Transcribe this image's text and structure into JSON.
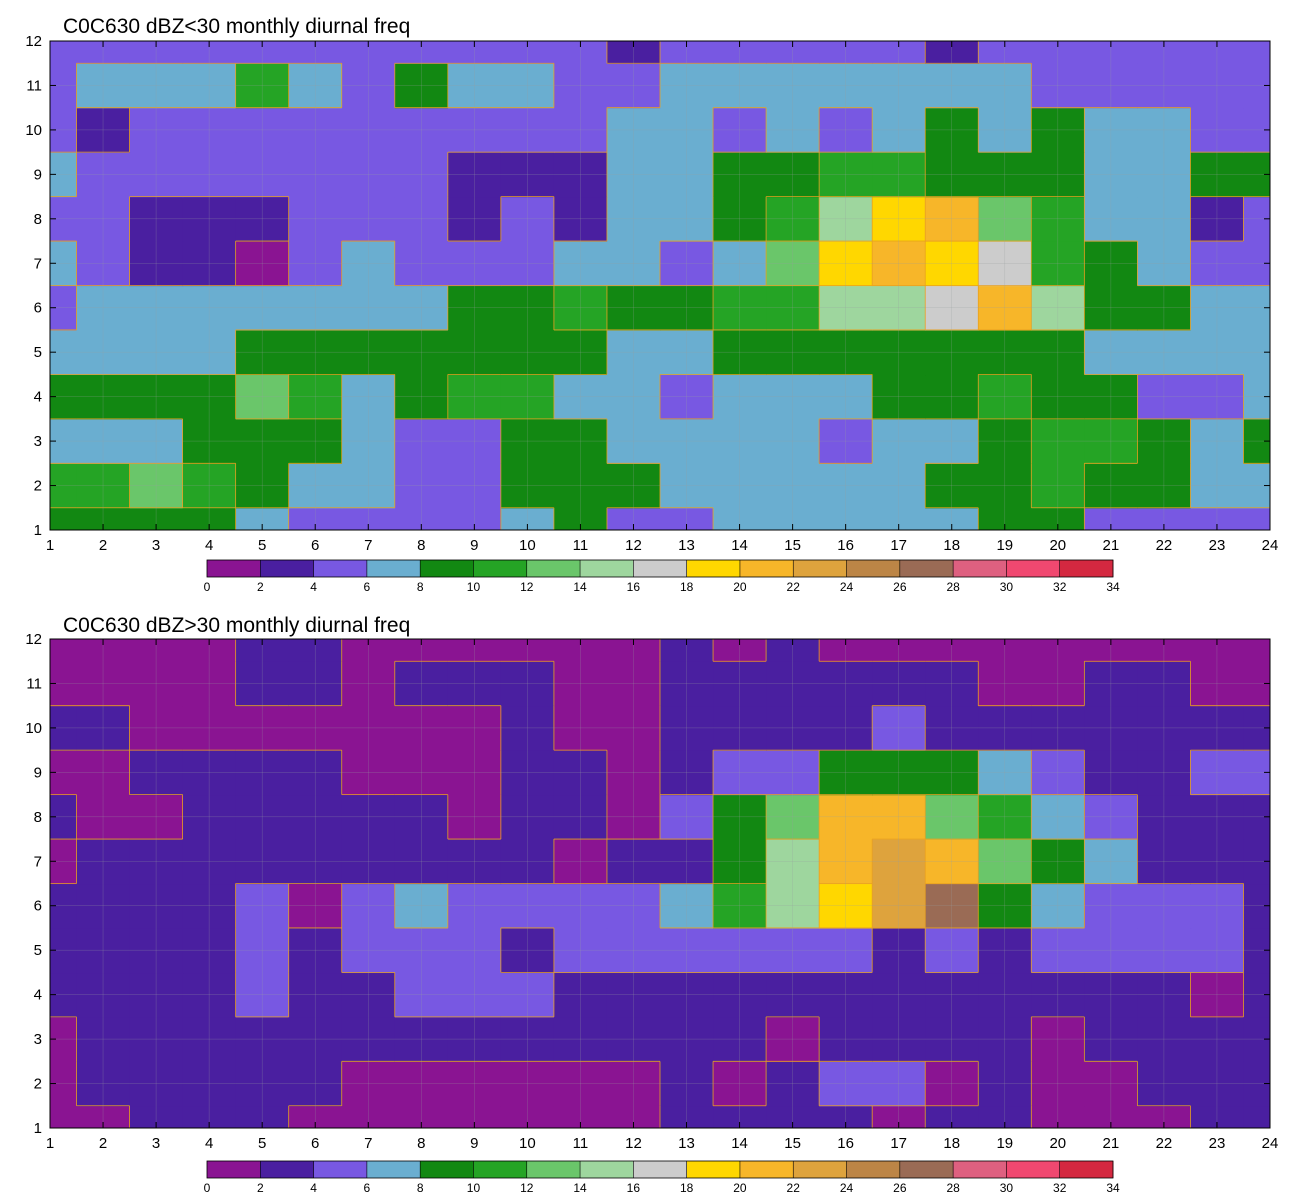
{
  "chart_data": [
    {
      "type": "heatmap",
      "title": "C0C630 dBZ<30 monthly diurnal freq",
      "x_ticks": [
        1,
        2,
        3,
        4,
        5,
        6,
        7,
        8,
        9,
        10,
        11,
        12,
        13,
        14,
        15,
        16,
        17,
        18,
        19,
        20,
        21,
        22,
        23,
        24
      ],
      "y_ticks": [
        1,
        2,
        3,
        4,
        5,
        6,
        7,
        8,
        9,
        10,
        11,
        12
      ],
      "xlim": [
        1,
        24
      ],
      "ylim": [
        1,
        12
      ],
      "levels": [
        0,
        2,
        4,
        6,
        8,
        10,
        12,
        14,
        16,
        18,
        20,
        22,
        24,
        26,
        28,
        30,
        32,
        34
      ],
      "grid": true,
      "z": [
        [
          9,
          9,
          9,
          8,
          6,
          5,
          4,
          4,
          4,
          6,
          8,
          4,
          4,
          6,
          6,
          6,
          7,
          6,
          8,
          8,
          4,
          4,
          4,
          4
        ],
        [
          11,
          11,
          13,
          11,
          9,
          7,
          7,
          5,
          5,
          8,
          9,
          9,
          6,
          7,
          7,
          7,
          7,
          8,
          9,
          10,
          9,
          8,
          6,
          7
        ],
        [
          7,
          7,
          7,
          9,
          9,
          9,
          7,
          5,
          5,
          9,
          8,
          7,
          7,
          7,
          7,
          5,
          7,
          7,
          9,
          10,
          11,
          9,
          7,
          9
        ],
        [
          9,
          9,
          9,
          9,
          13,
          11,
          7,
          9,
          11,
          11,
          7,
          7,
          5,
          7,
          7,
          7,
          9,
          9,
          11,
          9,
          9,
          5,
          5,
          7
        ],
        [
          7,
          7,
          7,
          7,
          9,
          9,
          9,
          9,
          9,
          9,
          9,
          7,
          7,
          9,
          9,
          9,
          9,
          9,
          9,
          9,
          7,
          7,
          7,
          7
        ],
        [
          5,
          7,
          7,
          7,
          7,
          7,
          7,
          7,
          9,
          9,
          11,
          9,
          9,
          11,
          11,
          15,
          15,
          17,
          21,
          15,
          9,
          9,
          7,
          7
        ],
        [
          7,
          5,
          3,
          3,
          1,
          5,
          7,
          5,
          5,
          5,
          7,
          7,
          5,
          7,
          13,
          19,
          21,
          19,
          17,
          11,
          9,
          7,
          5,
          5
        ],
        [
          5,
          5,
          3,
          3,
          3,
          5,
          5,
          5,
          3,
          5,
          3,
          7,
          7,
          9,
          11,
          15,
          19,
          21,
          13,
          11,
          7,
          7,
          3,
          5
        ],
        [
          7,
          5,
          5,
          5,
          5,
          5,
          5,
          5,
          3,
          3,
          3,
          7,
          7,
          9,
          9,
          11,
          11,
          9,
          9,
          9,
          7,
          7,
          9,
          9
        ],
        [
          5,
          3,
          5,
          5,
          5,
          5,
          5,
          5,
          5,
          5,
          5,
          7,
          7,
          5,
          7,
          5,
          7,
          9,
          7,
          9,
          7,
          7,
          5,
          5
        ],
        [
          5,
          7,
          7,
          7,
          11,
          7,
          5,
          9,
          7,
          7,
          5,
          5,
          7,
          7,
          7,
          7,
          7,
          7,
          7,
          5,
          5,
          5,
          5,
          5
        ],
        [
          5,
          5,
          5,
          5,
          5,
          5,
          5,
          5,
          5,
          5,
          5,
          3,
          5,
          5,
          5,
          5,
          5,
          3,
          5,
          5,
          5,
          5,
          5,
          5
        ]
      ]
    },
    {
      "type": "heatmap",
      "title": "C0C630 dBZ>30 monthly diurnal freq",
      "x_ticks": [
        1,
        2,
        3,
        4,
        5,
        6,
        7,
        8,
        9,
        10,
        11,
        12,
        13,
        14,
        15,
        16,
        17,
        18,
        19,
        20,
        21,
        22,
        23,
        24
      ],
      "y_ticks": [
        1,
        2,
        3,
        4,
        5,
        6,
        7,
        8,
        9,
        10,
        11,
        12
      ],
      "xlim": [
        1,
        24
      ],
      "ylim": [
        1,
        12
      ],
      "levels": [
        0,
        2,
        4,
        6,
        8,
        10,
        12,
        14,
        16,
        18,
        20,
        22,
        24,
        26,
        28,
        30,
        32,
        34
      ],
      "grid": true,
      "z": [
        [
          1,
          1,
          3,
          3,
          3,
          1,
          1,
          1,
          1,
          1,
          1,
          1,
          3,
          3,
          3,
          3,
          1,
          3,
          3,
          1,
          1,
          1,
          3,
          3
        ],
        [
          1,
          3,
          3,
          3,
          3,
          3,
          1,
          1,
          1,
          1,
          1,
          1,
          3,
          1,
          3,
          5,
          5,
          1,
          3,
          1,
          1,
          3,
          3,
          3
        ],
        [
          1,
          3,
          3,
          3,
          3,
          3,
          3,
          3,
          3,
          3,
          3,
          3,
          3,
          3,
          1,
          3,
          3,
          3,
          3,
          1,
          3,
          3,
          3,
          3
        ],
        [
          3,
          3,
          3,
          3,
          5,
          3,
          3,
          5,
          5,
          5,
          3,
          3,
          3,
          3,
          3,
          3,
          3,
          3,
          3,
          3,
          3,
          3,
          1,
          3
        ],
        [
          3,
          3,
          3,
          3,
          5,
          3,
          5,
          5,
          5,
          3,
          5,
          5,
          5,
          5,
          5,
          5,
          3,
          5,
          3,
          5,
          5,
          5,
          5,
          3
        ],
        [
          3,
          3,
          3,
          3,
          5,
          1,
          5,
          7,
          5,
          5,
          5,
          5,
          7,
          11,
          15,
          19,
          23,
          27,
          9,
          7,
          5,
          5,
          5,
          3
        ],
        [
          1,
          3,
          3,
          3,
          3,
          3,
          3,
          3,
          3,
          3,
          1,
          3,
          3,
          9,
          15,
          21,
          23,
          21,
          13,
          9,
          7,
          3,
          3,
          3
        ],
        [
          3,
          1,
          1,
          3,
          3,
          3,
          3,
          3,
          1,
          3,
          3,
          1,
          5,
          9,
          13,
          21,
          21,
          13,
          11,
          7,
          5,
          3,
          3,
          3
        ],
        [
          1,
          1,
          3,
          3,
          3,
          3,
          1,
          1,
          1,
          3,
          3,
          1,
          3,
          5,
          5,
          9,
          9,
          9,
          7,
          5,
          3,
          3,
          5,
          5
        ],
        [
          3,
          3,
          1,
          1,
          1,
          1,
          1,
          1,
          1,
          3,
          1,
          1,
          3,
          3,
          3,
          3,
          5,
          3,
          3,
          3,
          3,
          3,
          3,
          3
        ],
        [
          1,
          1,
          1,
          1,
          3,
          3,
          1,
          3,
          3,
          3,
          1,
          1,
          3,
          3,
          3,
          3,
          3,
          3,
          1,
          1,
          3,
          3,
          1,
          1
        ],
        [
          1,
          1,
          1,
          1,
          3,
          3,
          1,
          1,
          1,
          1,
          1,
          1,
          3,
          1,
          3,
          1,
          1,
          1,
          1,
          1,
          1,
          1,
          1,
          1
        ]
      ]
    }
  ],
  "colors": {
    "palette": [
      "#8a1492",
      "#4a1fa0",
      "#7858e2",
      "#6aaed0",
      "#128812",
      "#25a425",
      "#6ac66a",
      "#9ed69e",
      "#cccccc",
      "#ffd700",
      "#f7b629",
      "#dea33d",
      "#bc8546",
      "#9a6b55",
      "#de6080",
      "#f04870",
      "#d42840"
    ],
    "contour_line": "#e8a020",
    "grid_line": "#9aa0a0"
  },
  "colorbar": {
    "tick_labels": [
      "0",
      "2",
      "4",
      "6",
      "8",
      "10",
      "12",
      "14",
      "16",
      "18",
      "20",
      "22",
      "24",
      "26",
      "28",
      "30",
      "32",
      "34"
    ]
  }
}
